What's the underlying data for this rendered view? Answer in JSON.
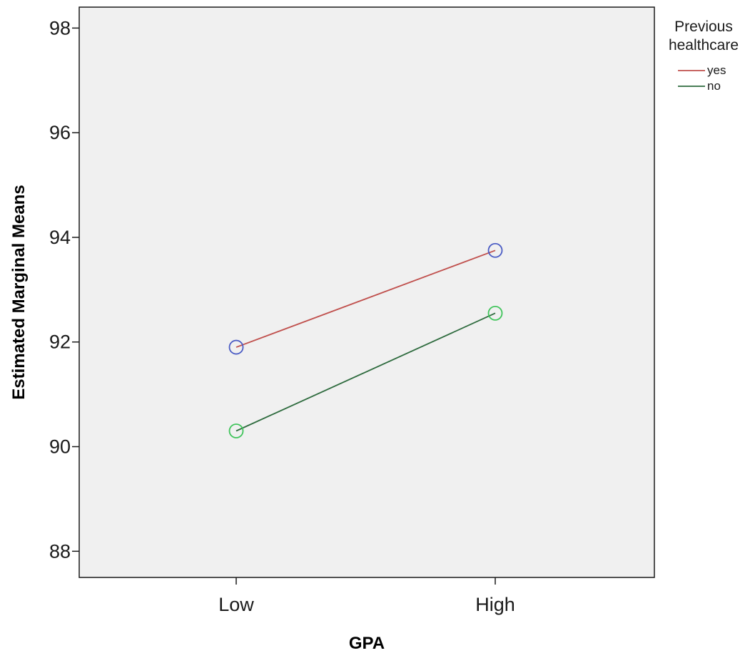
{
  "chart_data": {
    "type": "line",
    "title": "",
    "xlabel": "GPA",
    "ylabel": "Estimated Marginal Means",
    "categories": [
      "Low",
      "High"
    ],
    "ylim": [
      87.5,
      98.4
    ],
    "yticks": [
      88,
      90,
      92,
      94,
      96,
      98
    ],
    "grid": false,
    "legend": {
      "title_lines": [
        "Previous",
        "healthcare"
      ],
      "placement": "right"
    },
    "series": [
      {
        "name": "yes",
        "values": [
          91.9,
          93.75
        ],
        "line_color": "#c0504d",
        "marker_colors": [
          "#4a5bc4",
          "#4a5bc4"
        ]
      },
      {
        "name": "no",
        "values": [
          90.3,
          92.55
        ],
        "line_color": "#2e6b3e",
        "marker_colors": [
          "#3fc45a",
          "#3fc45a"
        ]
      }
    ],
    "plot_background": "#f0f0f0"
  }
}
